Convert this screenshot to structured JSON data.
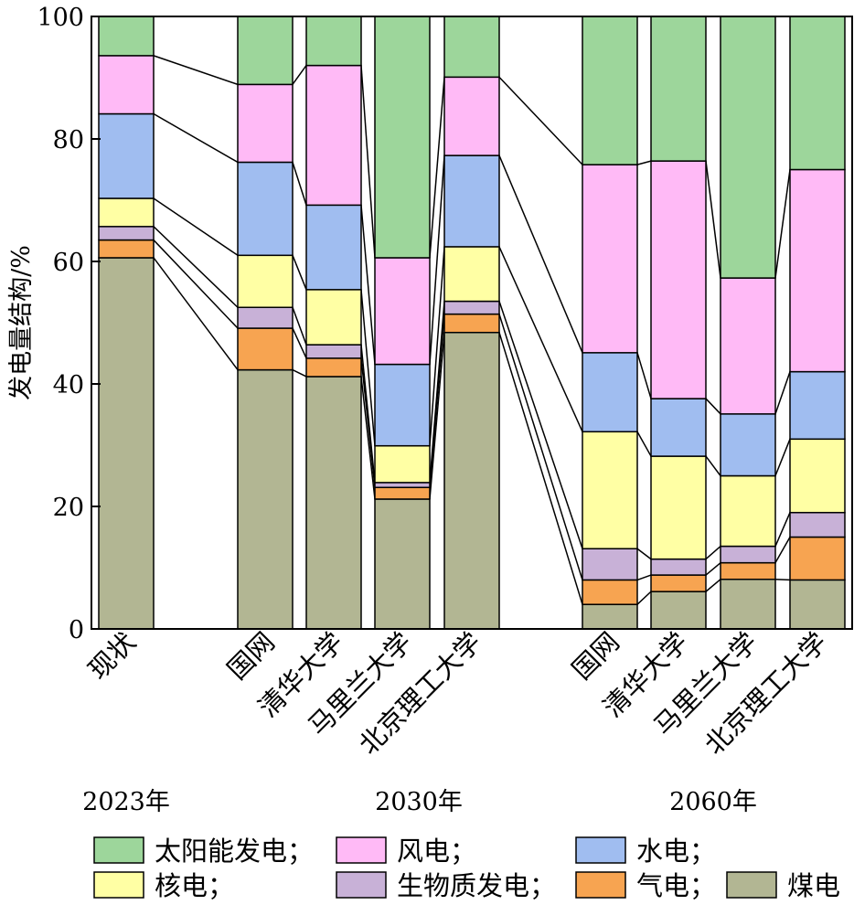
{
  "chart_data": {
    "type": "bar",
    "stacked": true,
    "ylabel": "发电量结构/%",
    "ylim": [
      0,
      100
    ],
    "yticks": [
      0,
      20,
      40,
      60,
      80,
      100
    ],
    "categories": [
      "现状",
      "国网",
      "清华大学",
      "马里兰大学",
      "北京理工大学",
      "国网",
      "清华大学",
      "马里兰大学",
      "北京理工大学"
    ],
    "groups": [
      {
        "label": "2023年",
        "indices": [
          0
        ]
      },
      {
        "label": "2030年",
        "indices": [
          1,
          2,
          3,
          4
        ]
      },
      {
        "label": "2060年",
        "indices": [
          5,
          6,
          7,
          8
        ]
      }
    ],
    "series": [
      {
        "name": "煤电",
        "color": "#b2b693",
        "values": [
          60.6,
          42.3,
          41.2,
          21.2,
          48.4,
          4.0,
          6.1,
          8.1,
          8.0
        ]
      },
      {
        "name": "气电",
        "color": "#f7a451",
        "values": [
          2.9,
          6.8,
          3.0,
          1.9,
          3.0,
          4.0,
          2.7,
          2.7,
          7.0
        ]
      },
      {
        "name": "生物质发电",
        "color": "#c8b1d7",
        "values": [
          2.2,
          3.4,
          2.2,
          0.8,
          2.1,
          5.1,
          2.6,
          2.7,
          4.0
        ]
      },
      {
        "name": "核电",
        "color": "#ffffa4",
        "values": [
          4.6,
          8.5,
          9.0,
          6.0,
          8.9,
          19.1,
          16.8,
          11.5,
          12.0
        ]
      },
      {
        "name": "水电",
        "color": "#a0bdf0",
        "values": [
          13.8,
          15.2,
          13.8,
          13.3,
          14.9,
          12.9,
          9.4,
          10.1,
          11.0
        ]
      },
      {
        "name": "风电",
        "color": "#ffbaf6",
        "values": [
          9.5,
          12.7,
          22.8,
          17.4,
          12.8,
          30.7,
          38.8,
          22.2,
          33.0
        ]
      },
      {
        "name": "太阳能发电",
        "color": "#9dd69b",
        "values": [
          6.4,
          11.1,
          8.0,
          39.4,
          9.9,
          24.2,
          23.6,
          42.7,
          25.0
        ]
      }
    ],
    "legend": {
      "placement": "bottom",
      "entries": [
        "太阳能发电；",
        "风电；",
        "水电；",
        "核电；",
        "生物质发电；",
        "气电；",
        "煤电"
      ]
    }
  }
}
